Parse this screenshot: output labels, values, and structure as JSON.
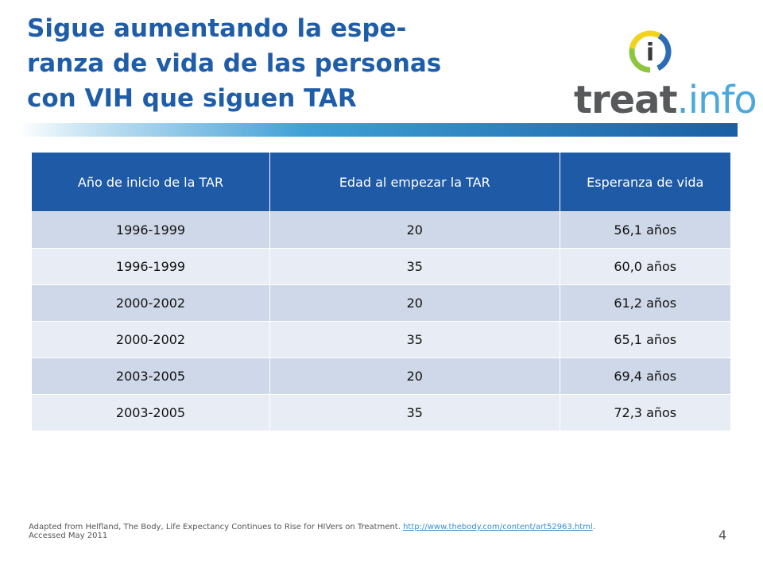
{
  "slide": {
    "title_lines": [
      "Sigue aumentando la espe-",
      "ranza de vida de las personas",
      "con VIH que siguen TAR"
    ],
    "page_number": "4"
  },
  "logo": {
    "text_dark": "treat",
    "text_light": ".info",
    "icon_letter": "i",
    "colors": {
      "dark": "#58595b",
      "light": "#4aa8dc",
      "ring_blue": "#2b6cb5",
      "ring_green": "#8cc63f",
      "ring_yellow": "#f2d21b"
    }
  },
  "table": {
    "headers": [
      "Año de inicio de la TAR",
      "Edad al empezar la TAR",
      "Esperanza de vida"
    ],
    "rows": [
      [
        "1996-1999",
        "20",
        "56,1 años"
      ],
      [
        "1996-1999",
        "35",
        "60,0 años"
      ],
      [
        "2000-2002",
        "20",
        "61,2 años"
      ],
      [
        "2000-2002",
        "35",
        "65,1 años"
      ],
      [
        "2003-2005",
        "20",
        "69,4 años"
      ],
      [
        "2003-2005",
        "35",
        "72,3 años"
      ]
    ]
  },
  "footer": {
    "text_before": "Adapted from Helfland, The Body, Life Expectancy Continues to Rise for HIVers on Treatment. ",
    "link": "http://www.thebody.com/content/art52963.html",
    "text_after": ".",
    "line2": "Accessed May 2011"
  },
  "colors": {
    "title": "#1f5da8",
    "header_bg": "#1f5aa6",
    "row_odd": "#cfd8e8",
    "row_even": "#e8edf5"
  }
}
